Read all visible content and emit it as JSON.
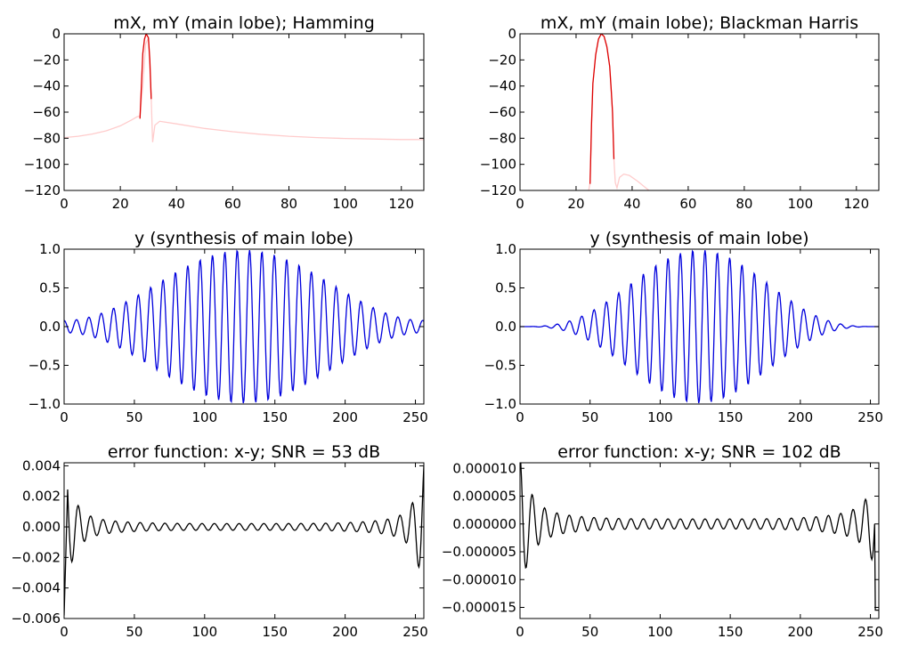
{
  "chart_data": [
    {
      "type": "line",
      "title": "mX, mY (main lobe); Hamming",
      "xlim": [
        0,
        128
      ],
      "ylim": [
        -120,
        0
      ],
      "xticks": [
        0,
        20,
        40,
        60,
        80,
        100,
        120
      ],
      "yticks": [
        0,
        -20,
        -40,
        -60,
        -80,
        -100,
        -120
      ],
      "series": [
        {
          "color": "#ffcccc",
          "points": [
            [
              0,
              -79.5
            ],
            [
              5,
              -78.5
            ],
            [
              10,
              -76.8
            ],
            [
              15,
              -74.3
            ],
            [
              20,
              -70.5
            ],
            [
              24,
              -66
            ],
            [
              26,
              -63.5
            ],
            [
              27,
              -63
            ],
            [
              28,
              -40
            ],
            [
              29,
              -8
            ],
            [
              30,
              -3
            ],
            [
              31,
              -50
            ],
            [
              31.5,
              -83
            ],
            [
              32.3,
              -70
            ],
            [
              34,
              -67
            ],
            [
              40,
              -69
            ],
            [
              50,
              -72.5
            ],
            [
              60,
              -75
            ],
            [
              70,
              -77
            ],
            [
              80,
              -78.5
            ],
            [
              90,
              -79.5
            ],
            [
              100,
              -80.2
            ],
            [
              110,
              -80.6
            ],
            [
              120,
              -81
            ],
            [
              128,
              -81
            ]
          ]
        },
        {
          "color": "#dd0000",
          "points": [
            [
              27,
              -65
            ],
            [
              27.5,
              -40
            ],
            [
              28,
              -15
            ],
            [
              28.6,
              -4
            ],
            [
              29.2,
              0
            ],
            [
              30,
              -3
            ],
            [
              30.5,
              -20
            ],
            [
              31,
              -50
            ]
          ]
        }
      ]
    },
    {
      "type": "line",
      "title": "mX, mY (main lobe); Blackman Harris",
      "xlim": [
        0,
        128
      ],
      "ylim": [
        -120,
        0
      ],
      "xticks": [
        0,
        20,
        40,
        60,
        80,
        100,
        120
      ],
      "yticks": [
        0,
        -20,
        -40,
        -60,
        -80,
        -100,
        -120
      ],
      "series": [
        {
          "color": "#ffcccc",
          "points": [
            [
              24.5,
              -120
            ],
            [
              25,
              -114
            ],
            [
              25.5,
              -70
            ],
            [
              26,
              -38
            ],
            [
              27,
              -16
            ],
            [
              28,
              -4
            ],
            [
              29,
              0
            ],
            [
              30,
              -2
            ],
            [
              31,
              -10
            ],
            [
              32,
              -25
            ],
            [
              33,
              -60
            ],
            [
              33.5,
              -96
            ],
            [
              34,
              -114
            ],
            [
              34.6,
              -118
            ],
            [
              35.5,
              -110
            ],
            [
              37,
              -107.5
            ],
            [
              39,
              -108.5
            ],
            [
              42,
              -113
            ],
            [
              46,
              -120
            ]
          ]
        },
        {
          "color": "#dd0000",
          "points": [
            [
              25,
              -115
            ],
            [
              25.5,
              -70
            ],
            [
              26,
              -38
            ],
            [
              27,
              -16
            ],
            [
              28,
              -4
            ],
            [
              29,
              0
            ],
            [
              30,
              -2
            ],
            [
              31,
              -10
            ],
            [
              32,
              -25
            ],
            [
              32.6,
              -45
            ],
            [
              33,
              -60
            ],
            [
              33.5,
              -96
            ]
          ]
        }
      ]
    },
    {
      "type": "line",
      "title": "y (synthesis of main lobe)",
      "xlim": [
        0,
        256
      ],
      "ylim": [
        -1.0,
        1.0
      ],
      "xticks": [
        0,
        50,
        100,
        150,
        200,
        250
      ],
      "yticks": [
        1.0,
        0.5,
        0.0,
        -0.5,
        -1.0
      ],
      "series": [
        {
          "color": "#0000dd",
          "generator": "hamming_lobe",
          "cycle_samples": 8.8,
          "amplitude": 0.99
        }
      ]
    },
    {
      "type": "line",
      "title": "y (synthesis of main lobe)",
      "xlim": [
        0,
        256
      ],
      "ylim": [
        -1.0,
        1.0
      ],
      "xticks": [
        0,
        50,
        100,
        150,
        200,
        250
      ],
      "yticks": [
        1.0,
        0.5,
        0.0,
        -0.5,
        -1.0
      ],
      "series": [
        {
          "color": "#0000dd",
          "generator": "blackman_lobe",
          "cycle_samples": 8.8,
          "amplitude": 0.99
        }
      ]
    },
    {
      "type": "line",
      "title": "error function: x-y; SNR = 53 dB",
      "xlim": [
        0,
        256
      ],
      "ylim": [
        -0.006,
        0.0042
      ],
      "xticks": [
        0,
        50,
        100,
        150,
        200,
        250
      ],
      "yticks": [
        0.004,
        0.002,
        0.0,
        -0.002,
        -0.004,
        -0.006
      ],
      "tick_labels": [
        "0.004",
        "0.002",
        "0.000",
        "−0.002",
        "−0.004",
        "−0.006"
      ],
      "series": [
        {
          "color": "#000000",
          "generator": "error_hamming",
          "cycle_samples": 8.8
        }
      ]
    },
    {
      "type": "line",
      "title": "error function: x-y; SNR = 102 dB",
      "xlim": [
        0,
        256
      ],
      "ylim": [
        -1.7e-05,
        1.1e-05
      ],
      "xticks": [
        0,
        50,
        100,
        150,
        200,
        250
      ],
      "yticks": [
        1e-05,
        5e-06,
        0.0,
        -5e-06,
        -1e-05,
        -1.5e-05
      ],
      "tick_labels": [
        "0.000010",
        "0.000005",
        "0.000000",
        "−0.000005",
        "−0.000010",
        "−0.000015"
      ],
      "series": [
        {
          "color": "#000000",
          "generator": "error_blackman",
          "cycle_samples": 8.8
        }
      ]
    }
  ]
}
